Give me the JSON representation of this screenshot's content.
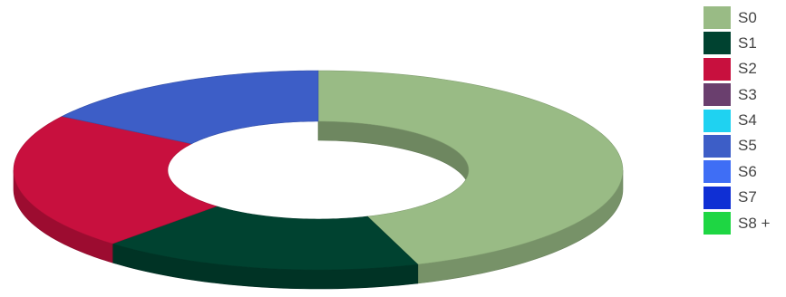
{
  "chart_data": {
    "type": "pie",
    "style": "3d-donut",
    "title": "",
    "legend_position": "right",
    "series": [
      {
        "name": "S0",
        "value": 44.7,
        "color": "#99bb85"
      },
      {
        "name": "S1",
        "value": 17.1,
        "color": "#004230"
      },
      {
        "name": "S2",
        "value": 22.3,
        "color": "#c8103e"
      },
      {
        "name": "S3",
        "value": 0,
        "color": "#6a3f6e"
      },
      {
        "name": "S4",
        "value": 0,
        "color": "#1fd2f1"
      },
      {
        "name": "S5",
        "value": 15.9,
        "color": "#3d5ec7"
      },
      {
        "name": "S6",
        "value": 0,
        "color": "#3f6ef5"
      },
      {
        "name": "S7",
        "value": 0,
        "color": "#0f2fd4"
      },
      {
        "name": "S8 +",
        "value": 0,
        "color": "#1ed643"
      }
    ]
  }
}
